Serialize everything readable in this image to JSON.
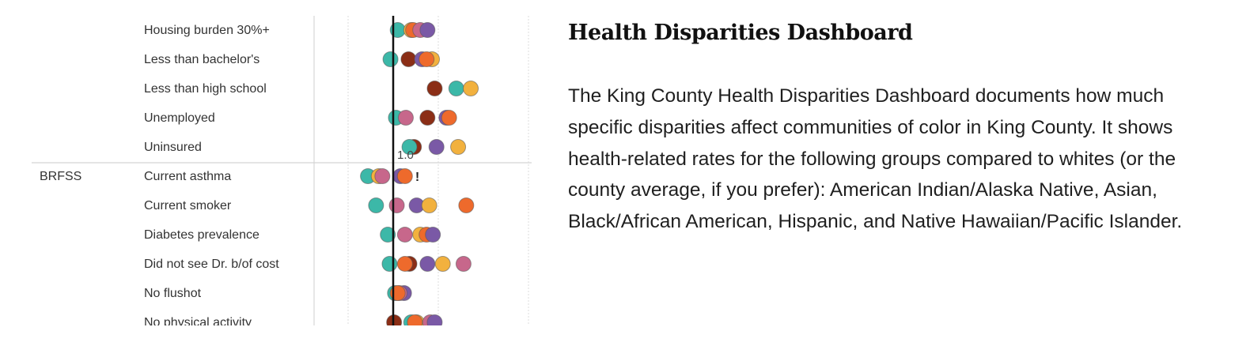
{
  "article": {
    "title": "Health Disparities Dashboard",
    "body": "The King County Health Disparities Dashboard documents how much specific disparities affect communities of color in King County. It shows health-related rates for the following groups compared to whites (or the county average, if you prefer): American Indian/Alaska Native, Asian, Black/African American, Hispanic, and Native Hawaiian/Pacific Islander."
  },
  "colors": {
    "teal": "#3cb8a8",
    "brown": "#8b2e16",
    "purple": "#7a59a6",
    "orange": "#ee6a2c",
    "yellow": "#f2b13e",
    "pink": "#c7678b",
    "reference_line": "#111111",
    "grid": "#dddddd"
  },
  "chart_data": {
    "type": "scatter",
    "reference_label": "1.0",
    "reference_value": 1.0,
    "x_range": [
      0.5,
      2.5
    ],
    "gridlines": [
      0.5,
      1.5,
      2.5
    ],
    "annotation": "!",
    "groups": [
      {
        "name": "",
        "rows": [
          "Housing burden 30%+",
          "Less than bachelor's",
          "Less than high school",
          "Unemployed",
          "Uninsured"
        ]
      },
      {
        "name": "BRFSS",
        "rows": [
          "Current asthma",
          "Current smoker",
          "Diabetes prevalence",
          "Did not see Dr. b/of cost",
          "No flushot",
          "No physical activity"
        ]
      }
    ],
    "rows": [
      {
        "label": "Housing burden 30%+",
        "points": [
          {
            "color": "teal",
            "value": 1.05
          },
          {
            "color": "yellow",
            "value": 1.2
          },
          {
            "color": "orange",
            "value": 1.22
          },
          {
            "color": "pink",
            "value": 1.3
          },
          {
            "color": "purple",
            "value": 1.38
          }
        ]
      },
      {
        "label": "Less than bachelor's",
        "points": [
          {
            "color": "teal",
            "value": 0.97
          },
          {
            "color": "brown",
            "value": 1.17
          },
          {
            "color": "purple",
            "value": 1.32
          },
          {
            "color": "yellow",
            "value": 1.43
          },
          {
            "color": "orange",
            "value": 1.37
          }
        ]
      },
      {
        "label": "Less than high school",
        "points": [
          {
            "color": "brown",
            "value": 1.46
          },
          {
            "color": "teal",
            "value": 1.7
          },
          {
            "color": "yellow",
            "value": 1.86
          }
        ]
      },
      {
        "label": "Unemployed",
        "points": [
          {
            "color": "teal",
            "value": 1.03
          },
          {
            "color": "pink",
            "value": 1.14
          },
          {
            "color": "brown",
            "value": 1.38
          },
          {
            "color": "purple",
            "value": 1.59
          },
          {
            "color": "orange",
            "value": 1.62
          }
        ]
      },
      {
        "label": "Uninsured",
        "points": [
          {
            "color": "brown",
            "value": 1.23
          },
          {
            "color": "teal",
            "value": 1.18
          },
          {
            "color": "purple",
            "value": 1.48
          },
          {
            "color": "yellow",
            "value": 1.72
          }
        ]
      },
      {
        "label": "Current asthma",
        "points": [
          {
            "color": "teal",
            "value": 0.72
          },
          {
            "color": "yellow",
            "value": 0.84
          },
          {
            "color": "pink",
            "value": 0.88
          },
          {
            "color": "purple",
            "value": 1.08
          },
          {
            "color": "orange",
            "value": 1.13
          }
        ],
        "annotated": true
      },
      {
        "label": "Current smoker",
        "points": [
          {
            "color": "teal",
            "value": 0.81
          },
          {
            "color": "pink",
            "value": 1.04
          },
          {
            "color": "purple",
            "value": 1.26
          },
          {
            "color": "yellow",
            "value": 1.4
          },
          {
            "color": "orange",
            "value": 1.81
          }
        ]
      },
      {
        "label": "Diabetes prevalence",
        "points": [
          {
            "color": "teal",
            "value": 0.94
          },
          {
            "color": "pink",
            "value": 1.13
          },
          {
            "color": "yellow",
            "value": 1.3
          },
          {
            "color": "orange",
            "value": 1.37
          },
          {
            "color": "purple",
            "value": 1.44
          }
        ]
      },
      {
        "label": "Did not see Dr. b/of cost",
        "points": [
          {
            "color": "teal",
            "value": 0.96
          },
          {
            "color": "brown",
            "value": 1.18
          },
          {
            "color": "orange",
            "value": 1.13
          },
          {
            "color": "purple",
            "value": 1.38
          },
          {
            "color": "yellow",
            "value": 1.55
          },
          {
            "color": "pink",
            "value": 1.78
          }
        ]
      },
      {
        "label": "No flushot",
        "points": [
          {
            "color": "purple",
            "value": 1.12
          },
          {
            "color": "pink",
            "value": 1.07
          },
          {
            "color": "teal",
            "value": 1.02
          },
          {
            "color": "orange",
            "value": 1.05
          }
        ]
      },
      {
        "label": "No physical activity",
        "points": [
          {
            "color": "brown",
            "value": 1.01
          },
          {
            "color": "teal",
            "value": 1.2
          },
          {
            "color": "yellow",
            "value": 1.26
          },
          {
            "color": "orange",
            "value": 1.24
          },
          {
            "color": "pink",
            "value": 1.41
          },
          {
            "color": "purple",
            "value": 1.46
          }
        ]
      }
    ]
  }
}
